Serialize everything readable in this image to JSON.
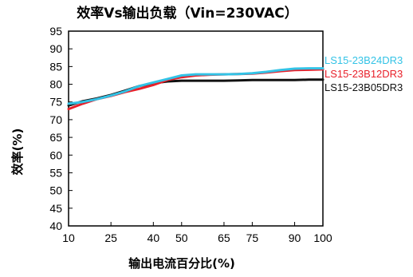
{
  "chart_data": {
    "type": "line",
    "title": "效率Vs输出负载（Vin=230VAC）",
    "xlabel": "输出电流百分比(%)",
    "ylabel": "效率(%)",
    "xlim": [
      10,
      100
    ],
    "ylim": [
      40,
      95
    ],
    "x_ticks": [
      "10",
      "25",
      "40",
      "50",
      "65",
      "75",
      "90",
      "100"
    ],
    "y_ticks": [
      "40",
      "45",
      "50",
      "55",
      "60",
      "65",
      "70",
      "75",
      "80",
      "85",
      "90",
      "95"
    ],
    "grid": false,
    "legend_position": "right",
    "series": [
      {
        "name": "LS15-23B24DR3",
        "color": "#33c3e6",
        "x": [
          10,
          15,
          20,
          25,
          30,
          35,
          40,
          45,
          50,
          55,
          60,
          65,
          70,
          75,
          80,
          85,
          90,
          95,
          100
        ],
        "y": [
          74.5,
          75,
          75.8,
          76.8,
          78,
          79.5,
          80.5,
          81.5,
          82.5,
          82.8,
          82.8,
          82.8,
          82.9,
          83.1,
          83.5,
          84,
          84.4,
          84.5,
          84.5
        ]
      },
      {
        "name": "LS15-23B12DR3",
        "color": "#e8202a",
        "x": [
          10,
          15,
          20,
          25,
          30,
          35,
          40,
          45,
          50,
          55,
          60,
          65,
          70,
          75,
          80,
          85,
          90,
          95,
          100
        ],
        "y": [
          73,
          74.5,
          75.8,
          76.7,
          77.8,
          78.7,
          79.8,
          81.2,
          82,
          82.5,
          82.7,
          82.8,
          82.9,
          83,
          83.3,
          83.7,
          84,
          84.1,
          84.2
        ]
      },
      {
        "name": "LS15-23B05DR3",
        "color": "#111111",
        "x": [
          10,
          15,
          20,
          25,
          30,
          35,
          40,
          45,
          50,
          55,
          60,
          65,
          70,
          75,
          80,
          85,
          90,
          95,
          100
        ],
        "y": [
          74,
          75.2,
          76,
          77,
          78.2,
          79.5,
          80.3,
          80.8,
          81,
          81,
          81,
          81,
          81.1,
          81.2,
          81.2,
          81.2,
          81.2,
          81.3,
          81.3
        ]
      }
    ]
  }
}
